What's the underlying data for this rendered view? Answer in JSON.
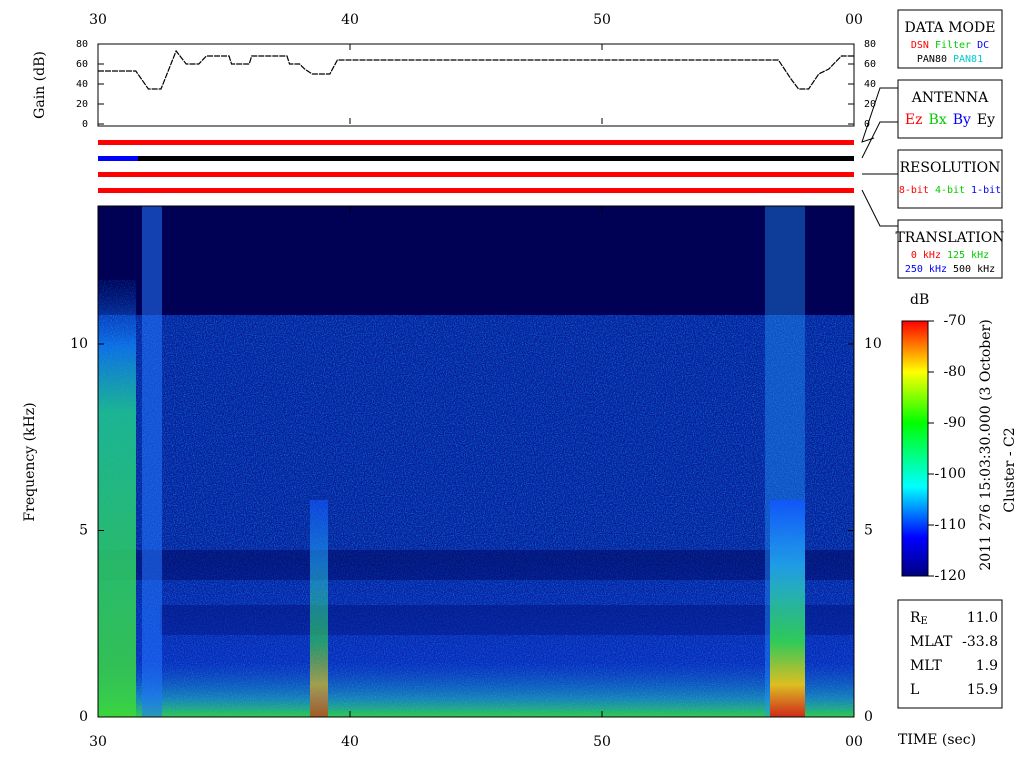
{
  "chart_data": [
    {
      "type": "line",
      "ylabel": "Gain (dB)",
      "x": [
        30,
        31.5,
        32.0,
        32.5,
        33.1,
        33.5,
        34.0,
        34.3,
        35.2,
        35.3,
        36.0,
        36.1,
        37.5,
        37.6,
        38.0,
        38.2,
        38.5,
        39.2,
        39.5,
        57.0,
        57.5,
        57.8,
        58.2,
        58.6,
        59.0,
        59.5,
        60
      ],
      "values": [
        53,
        53,
        35,
        35,
        73,
        60,
        60,
        68,
        68,
        60,
        60,
        68,
        68,
        60,
        60,
        55,
        50,
        50,
        64,
        64,
        45,
        35,
        35,
        50,
        55,
        68,
        68
      ],
      "color": "#000000",
      "xlim": [
        30,
        60
      ],
      "xticks": [
        30,
        40,
        50,
        {
          "value": 60,
          "label": "00"
        }
      ],
      "ylim": [
        0,
        80
      ],
      "yticks": [
        0,
        20,
        40,
        60,
        80
      ]
    },
    {
      "type": "spectrogram",
      "ylabel": "Frequency (kHz)",
      "xlabel": "TIME (sec)",
      "xlim": [
        30,
        60
      ],
      "xticks": [
        30,
        40,
        50,
        {
          "value": 60,
          "label": "00"
        }
      ],
      "ylim": [
        0,
        13.7
      ],
      "yticks": [
        0,
        5,
        10
      ],
      "colorbar": {
        "label": "dB",
        "lim": [
          -120,
          -70
        ],
        "ticks": [
          -70,
          -80,
          -90,
          -100,
          -110,
          -120
        ]
      }
    }
  ],
  "legends": [
    {
      "title": "DATA MODE",
      "rows": [
        [
          {
            "text": "DSN",
            "color": "#ff0000"
          },
          {
            "text": "Filter",
            "color": "#00cc00"
          },
          {
            "text": "DC",
            "color": "#0000ff"
          }
        ],
        [
          {
            "text": "PAN80",
            "color": "#000000"
          },
          {
            "text": "PAN81",
            "color": "#00cccc"
          }
        ]
      ]
    },
    {
      "title": "ANTENNA",
      "rows": [
        [
          {
            "text": "Ez",
            "color": "#ff0000"
          },
          {
            "text": "Bx",
            "color": "#00cc00"
          },
          {
            "text": "By",
            "color": "#0000ff"
          },
          {
            "text": "Ey",
            "color": "#000000"
          }
        ]
      ]
    },
    {
      "title": "RESOLUTION",
      "rows": [
        [
          {
            "text": "8-bit",
            "color": "#ff0000"
          },
          {
            "text": "4-bit",
            "color": "#00cc00"
          },
          {
            "text": "1-bit",
            "color": "#0000ff"
          }
        ]
      ]
    },
    {
      "title": "TRANSLATION",
      "rows": [
        [
          {
            "text": "0 kHz",
            "color": "#ff0000"
          },
          {
            "text": "125 kHz",
            "color": "#00cc00"
          }
        ],
        [
          {
            "text": "250 kHz",
            "color": "#0000ff"
          },
          {
            "text": "500 kHz",
            "color": "#000000"
          }
        ]
      ]
    }
  ],
  "timestamp": "2011 276 15:03:30.000 (3 October)",
  "spacecraft": "Cluster - C2",
  "info": [
    {
      "label": "R",
      "sub": "E",
      "value": "11.0"
    },
    {
      "label": "MLAT",
      "value": "-33.8"
    },
    {
      "label": "MLT",
      "value": "1.9"
    },
    {
      "label": "L",
      "value": "15.9"
    }
  ]
}
